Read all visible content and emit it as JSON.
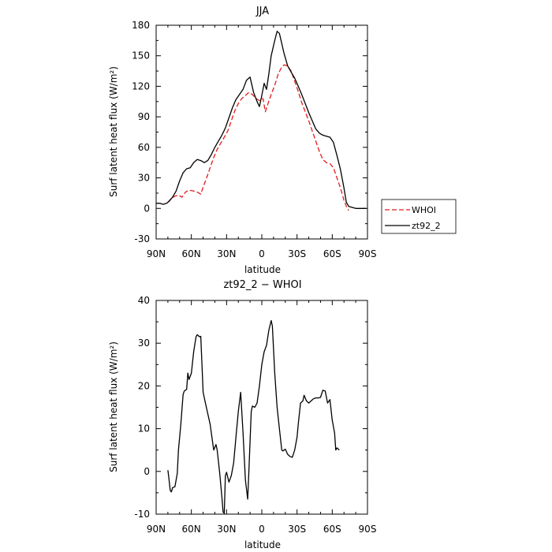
{
  "chart_data": [
    {
      "type": "line",
      "title": "JJA",
      "xlabel": "latitude",
      "ylabel": "Surf latent heat flux (W/m²)",
      "xlim": [
        90,
        -90
      ],
      "ylim": [
        -30,
        180
      ],
      "xticks": [
        90,
        60,
        30,
        0,
        -30,
        -60,
        -90
      ],
      "xtick_labels": [
        "90N",
        "60N",
        "30N",
        "0",
        "30S",
        "60S",
        "90S"
      ],
      "yticks": [
        -30,
        0,
        30,
        60,
        90,
        120,
        150,
        180
      ],
      "ytick_labels": [
        "-30",
        "0",
        "30",
        "60",
        "90",
        "120",
        "150",
        "180"
      ],
      "legend": {
        "position": "right",
        "entries": [
          "WHOI",
          "zt92_2"
        ]
      },
      "series": [
        {
          "name": "WHOI",
          "color": "#e41a1c",
          "dash": "dashed",
          "points": [
            [
              80,
              6
            ],
            [
              77,
              10
            ],
            [
              74,
              12
            ],
            [
              71,
              13
            ],
            [
              68,
              11
            ],
            [
              65,
              16
            ],
            [
              62,
              18
            ],
            [
              58,
              17
            ],
            [
              55,
              16
            ],
            [
              52,
              14
            ],
            [
              50,
              21
            ],
            [
              47,
              30
            ],
            [
              44,
              40
            ],
            [
              41,
              50
            ],
            [
              38,
              58
            ],
            [
              35,
              64
            ],
            [
              32,
              70
            ],
            [
              29,
              76
            ],
            [
              26,
              86
            ],
            [
              23,
              96
            ],
            [
              20,
              103
            ],
            [
              17,
              108
            ],
            [
              14,
              111
            ],
            [
              11,
              114
            ],
            [
              8,
              112
            ],
            [
              5,
              108
            ],
            [
              2,
              106
            ],
            [
              -1,
              108
            ],
            [
              -3,
              95
            ],
            [
              -5,
              102
            ],
            [
              -8,
              112
            ],
            [
              -11,
              121
            ],
            [
              -14,
              132
            ],
            [
              -17,
              139
            ],
            [
              -19,
              141
            ],
            [
              -22,
              140
            ],
            [
              -25,
              135
            ],
            [
              -28,
              125
            ],
            [
              -31,
              115
            ],
            [
              -34,
              104
            ],
            [
              -37,
              95
            ],
            [
              -40,
              86
            ],
            [
              -43,
              76
            ],
            [
              -46,
              66
            ],
            [
              -49,
              56
            ],
            [
              -52,
              48
            ],
            [
              -55,
              45
            ],
            [
              -58,
              44
            ],
            [
              -61,
              40
            ],
            [
              -64,
              30
            ],
            [
              -67,
              20
            ],
            [
              -70,
              8
            ],
            [
              -72,
              2
            ],
            [
              -74,
              -2
            ]
          ]
        },
        {
          "name": "zt92_2",
          "color": "#000000",
          "dash": "solid",
          "points": [
            [
              90,
              5
            ],
            [
              87,
              5
            ],
            [
              84,
              4
            ],
            [
              81,
              5
            ],
            [
              79,
              7
            ],
            [
              76,
              11
            ],
            [
              73,
              17
            ],
            [
              70,
              27
            ],
            [
              67,
              35
            ],
            [
              64,
              39
            ],
            [
              61,
              40
            ],
            [
              58,
              45
            ],
            [
              55,
              48
            ],
            [
              52,
              47
            ],
            [
              49,
              45
            ],
            [
              46,
              47
            ],
            [
              43,
              53
            ],
            [
              40,
              60
            ],
            [
              37,
              66
            ],
            [
              34,
              72
            ],
            [
              31,
              79
            ],
            [
              28,
              89
            ],
            [
              25,
              99
            ],
            [
              22,
              107
            ],
            [
              19,
              112
            ],
            [
              16,
              117
            ],
            [
              13,
              126
            ],
            [
              10,
              129
            ],
            [
              7,
              114
            ],
            [
              4,
              105
            ],
            [
              2,
              100
            ],
            [
              0,
              111
            ],
            [
              -2,
              123
            ],
            [
              -4,
              117
            ],
            [
              -6,
              132
            ],
            [
              -8,
              150
            ],
            [
              -11,
              165
            ],
            [
              -13,
              174
            ],
            [
              -15,
              172
            ],
            [
              -17,
              162
            ],
            [
              -19,
              152
            ],
            [
              -22,
              140
            ],
            [
              -25,
              134
            ],
            [
              -28,
              128
            ],
            [
              -31,
              120
            ],
            [
              -34,
              112
            ],
            [
              -37,
              103
            ],
            [
              -40,
              94
            ],
            [
              -43,
              86
            ],
            [
              -46,
              78
            ],
            [
              -49,
              74
            ],
            [
              -52,
              72
            ],
            [
              -55,
              71
            ],
            [
              -58,
              70
            ],
            [
              -61,
              65
            ],
            [
              -64,
              52
            ],
            [
              -67,
              38
            ],
            [
              -70,
              20
            ],
            [
              -72,
              6
            ],
            [
              -74,
              2
            ],
            [
              -77,
              1
            ],
            [
              -80,
              0
            ],
            [
              -83,
              0
            ],
            [
              -86,
              0
            ],
            [
              -89,
              0
            ]
          ]
        }
      ]
    },
    {
      "type": "line",
      "title": "zt92_2 − WHOI",
      "xlabel": "latitude",
      "ylabel": "Surf latent heat flux (W/m²)",
      "xlim": [
        90,
        -90
      ],
      "ylim": [
        -10,
        40
      ],
      "xticks": [
        90,
        60,
        30,
        0,
        -30,
        -60,
        -90
      ],
      "xtick_labels": [
        "90N",
        "60N",
        "30N",
        "0",
        "30S",
        "60S",
        "90S"
      ],
      "yticks": [
        -10,
        0,
        10,
        20,
        30,
        40
      ],
      "ytick_labels": [
        "-10",
        "0",
        "10",
        "20",
        "30",
        "40"
      ],
      "series": [
        {
          "color": "#000000",
          "dash": "solid",
          "points": [
            [
              80,
              0.3
            ],
            [
              79,
              -2
            ],
            [
              78,
              -4.5
            ],
            [
              77,
              -4.8
            ],
            [
              76,
              -3.8
            ],
            [
              74,
              -3.6
            ],
            [
              72,
              -0.5
            ],
            [
              71,
              5
            ],
            [
              69,
              11
            ],
            [
              67,
              18
            ],
            [
              66,
              18.8
            ],
            [
              64,
              19.2
            ],
            [
              63,
              23
            ],
            [
              62,
              21.5
            ],
            [
              60,
              23
            ],
            [
              58,
              28
            ],
            [
              56,
              31.5
            ],
            [
              55,
              32
            ],
            [
              53,
              31.5
            ],
            [
              52,
              31.6
            ],
            [
              50,
              18.5
            ],
            [
              48,
              16
            ],
            [
              46,
              13.5
            ],
            [
              44,
              11
            ],
            [
              42,
              7
            ],
            [
              41,
              5
            ],
            [
              39,
              6.3
            ],
            [
              38,
              5
            ],
            [
              36,
              0
            ],
            [
              34,
              -6
            ],
            [
              33,
              -9.5
            ],
            [
              32,
              -9.8
            ],
            [
              31,
              -1
            ],
            [
              30,
              -0.2
            ],
            [
              28,
              -2.5
            ],
            [
              26,
              -1
            ],
            [
              24,
              2
            ],
            [
              22,
              8
            ],
            [
              20,
              14
            ],
            [
              18,
              18.5
            ],
            [
              16,
              9
            ],
            [
              14,
              -2
            ],
            [
              12,
              -6.5
            ],
            [
              11,
              0
            ],
            [
              9,
              14
            ],
            [
              8,
              15.3
            ],
            [
              6,
              15
            ],
            [
              4,
              16
            ],
            [
              2,
              20
            ],
            [
              0,
              25
            ],
            [
              -2,
              28
            ],
            [
              -4,
              29.5
            ],
            [
              -6,
              33
            ],
            [
              -8,
              35.3
            ],
            [
              -9,
              34
            ],
            [
              -11,
              23
            ],
            [
              -13,
              15
            ],
            [
              -15,
              10
            ],
            [
              -17,
              5
            ],
            [
              -18,
              4.8
            ],
            [
              -20,
              5.2
            ],
            [
              -22,
              4
            ],
            [
              -24,
              3.5
            ],
            [
              -26,
              3.3
            ],
            [
              -28,
              5
            ],
            [
              -30,
              8
            ],
            [
              -31,
              11
            ],
            [
              -33,
              16
            ],
            [
              -35,
              16.5
            ],
            [
              -36,
              17.8
            ],
            [
              -38,
              16.5
            ],
            [
              -40,
              16
            ],
            [
              -42,
              16.5
            ],
            [
              -44,
              17
            ],
            [
              -46,
              17.2
            ],
            [
              -48,
              17.2
            ],
            [
              -50,
              17.3
            ],
            [
              -52,
              19
            ],
            [
              -54,
              18.8
            ],
            [
              -56,
              16
            ],
            [
              -58,
              16.8
            ],
            [
              -60,
              12
            ],
            [
              -62,
              9
            ],
            [
              -63,
              5
            ],
            [
              -64,
              5.5
            ],
            [
              -66,
              5
            ]
          ]
        }
      ]
    }
  ]
}
